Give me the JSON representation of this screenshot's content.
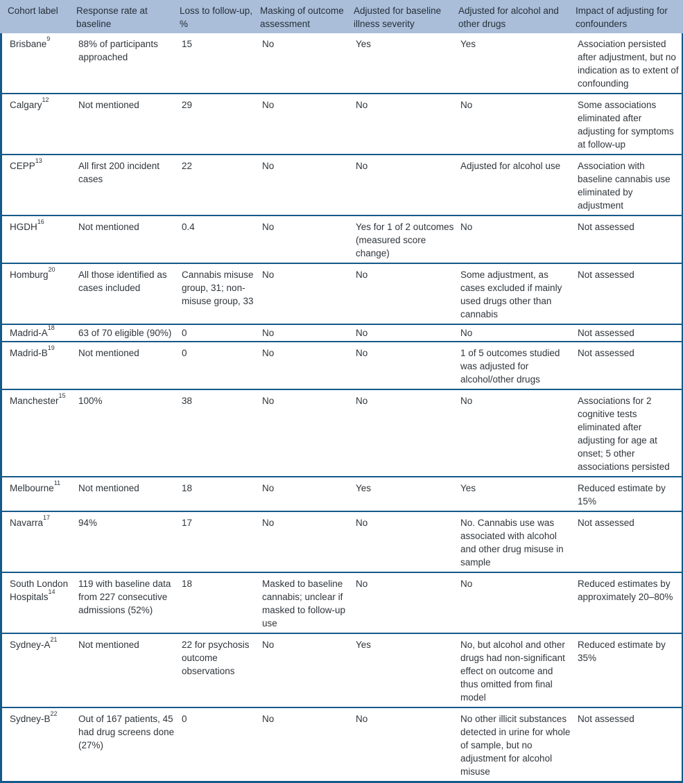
{
  "colors": {
    "header_background": "#aabeda",
    "rule_blue": "#14598a",
    "text": "#2f353b"
  },
  "table": {
    "columns": [
      {
        "label": "Cohort label"
      },
      {
        "label": "Response rate at baseline"
      },
      {
        "label": "Loss to follow-up, %"
      },
      {
        "label": "Masking of outcome assessment"
      },
      {
        "label": "Adjusted for baseline illness severity"
      },
      {
        "label": "Adjusted for alcohol and other drugs"
      },
      {
        "label": "Impact of adjusting for confounders"
      }
    ],
    "rows": [
      {
        "cohort": "Brisbane",
        "ref": "9",
        "response_rate": "88% of participants approached",
        "loss": "15",
        "masking": "No",
        "severity": "Yes",
        "alcohol": "Yes",
        "impact": "Association persisted after adjustment, but no indication as to extent of confounding"
      },
      {
        "cohort": "Calgary",
        "ref": "12",
        "response_rate": "Not mentioned",
        "loss": "29",
        "masking": "No",
        "severity": "No",
        "alcohol": "No",
        "impact": "Some associations eliminated after adjusting for symptoms at follow-up"
      },
      {
        "cohort": "CEPP",
        "ref": "13",
        "response_rate": "All first 200 incident cases",
        "loss": "22",
        "masking": "No",
        "severity": "No",
        "alcohol": "Adjusted for alcohol use",
        "impact": "Association with baseline cannabis use eliminated by adjustment"
      },
      {
        "cohort": "HGDH",
        "ref": "16",
        "response_rate": "Not mentioned",
        "loss": "0.4",
        "masking": "No",
        "severity": "Yes for 1 of 2 outcomes (measured score change)",
        "alcohol": "No",
        "impact": "Not assessed"
      },
      {
        "cohort": "Homburg",
        "ref": "20",
        "response_rate": "All those identified as cases included",
        "loss": "Cannabis misuse group, 31; non-misuse group, 33",
        "masking": "No",
        "severity": "No",
        "alcohol": "Some adjustment, as cases excluded if mainly used drugs other than cannabis",
        "impact": "Not assessed"
      },
      {
        "cohort": "Madrid-A",
        "ref": "18",
        "response_rate": "63 of 70 eligible (90%)",
        "loss": "0",
        "masking": "No",
        "severity": "No",
        "alcohol": "No",
        "impact": "Not assessed"
      },
      {
        "cohort": "Madrid-B",
        "ref": "19",
        "response_rate": "Not mentioned",
        "loss": "0",
        "masking": "No",
        "severity": "No",
        "alcohol": "1 of 5 outcomes studied was adjusted for alcohol/other drugs",
        "impact": "Not assessed"
      },
      {
        "cohort": "Manchester",
        "ref": "15",
        "response_rate": "100%",
        "loss": "38",
        "masking": "No",
        "severity": "No",
        "alcohol": "No",
        "impact": "Associations for 2 cognitive tests eliminated after adjusting for age at onset; 5 other associations persisted"
      },
      {
        "cohort": "Melbourne",
        "ref": "11",
        "response_rate": "Not mentioned",
        "loss": "18",
        "masking": "No",
        "severity": "Yes",
        "alcohol": "Yes",
        "impact": "Reduced estimate by 15%"
      },
      {
        "cohort": "Navarra",
        "ref": "17",
        "response_rate": "94%",
        "loss": "17",
        "masking": "No",
        "severity": "No",
        "alcohol": "No. Cannabis use was associated with alcohol and other drug misuse in sample",
        "impact": "Not assessed"
      },
      {
        "cohort": "South London Hospitals",
        "ref": "14",
        "response_rate": "119 with baseline data from 227 consecutive admissions (52%)",
        "loss": "18",
        "masking": "Masked to baseline cannabis; unclear if masked to follow-up use",
        "severity": "No",
        "alcohol": "No",
        "impact": "Reduced estimates by approximately 20–80%"
      },
      {
        "cohort": "Sydney-A",
        "ref": "21",
        "response_rate": "Not mentioned",
        "loss": "22 for psychosis outcome observations",
        "masking": "No",
        "severity": "Yes",
        "alcohol": "No, but alcohol and other drugs had non-significant effect on outcome and thus omitted from final model",
        "impact": "Reduced estimate by 35%"
      },
      {
        "cohort": "Sydney-B",
        "ref": "22",
        "response_rate": "Out of 167 patients, 45 had drug screens done (27%)",
        "loss": "0",
        "masking": "No",
        "severity": "No",
        "alcohol": "No other illicit substances detected in urine for whole of sample, but no adjustment for alcohol misuse",
        "impact": "Not assessed"
      }
    ]
  }
}
